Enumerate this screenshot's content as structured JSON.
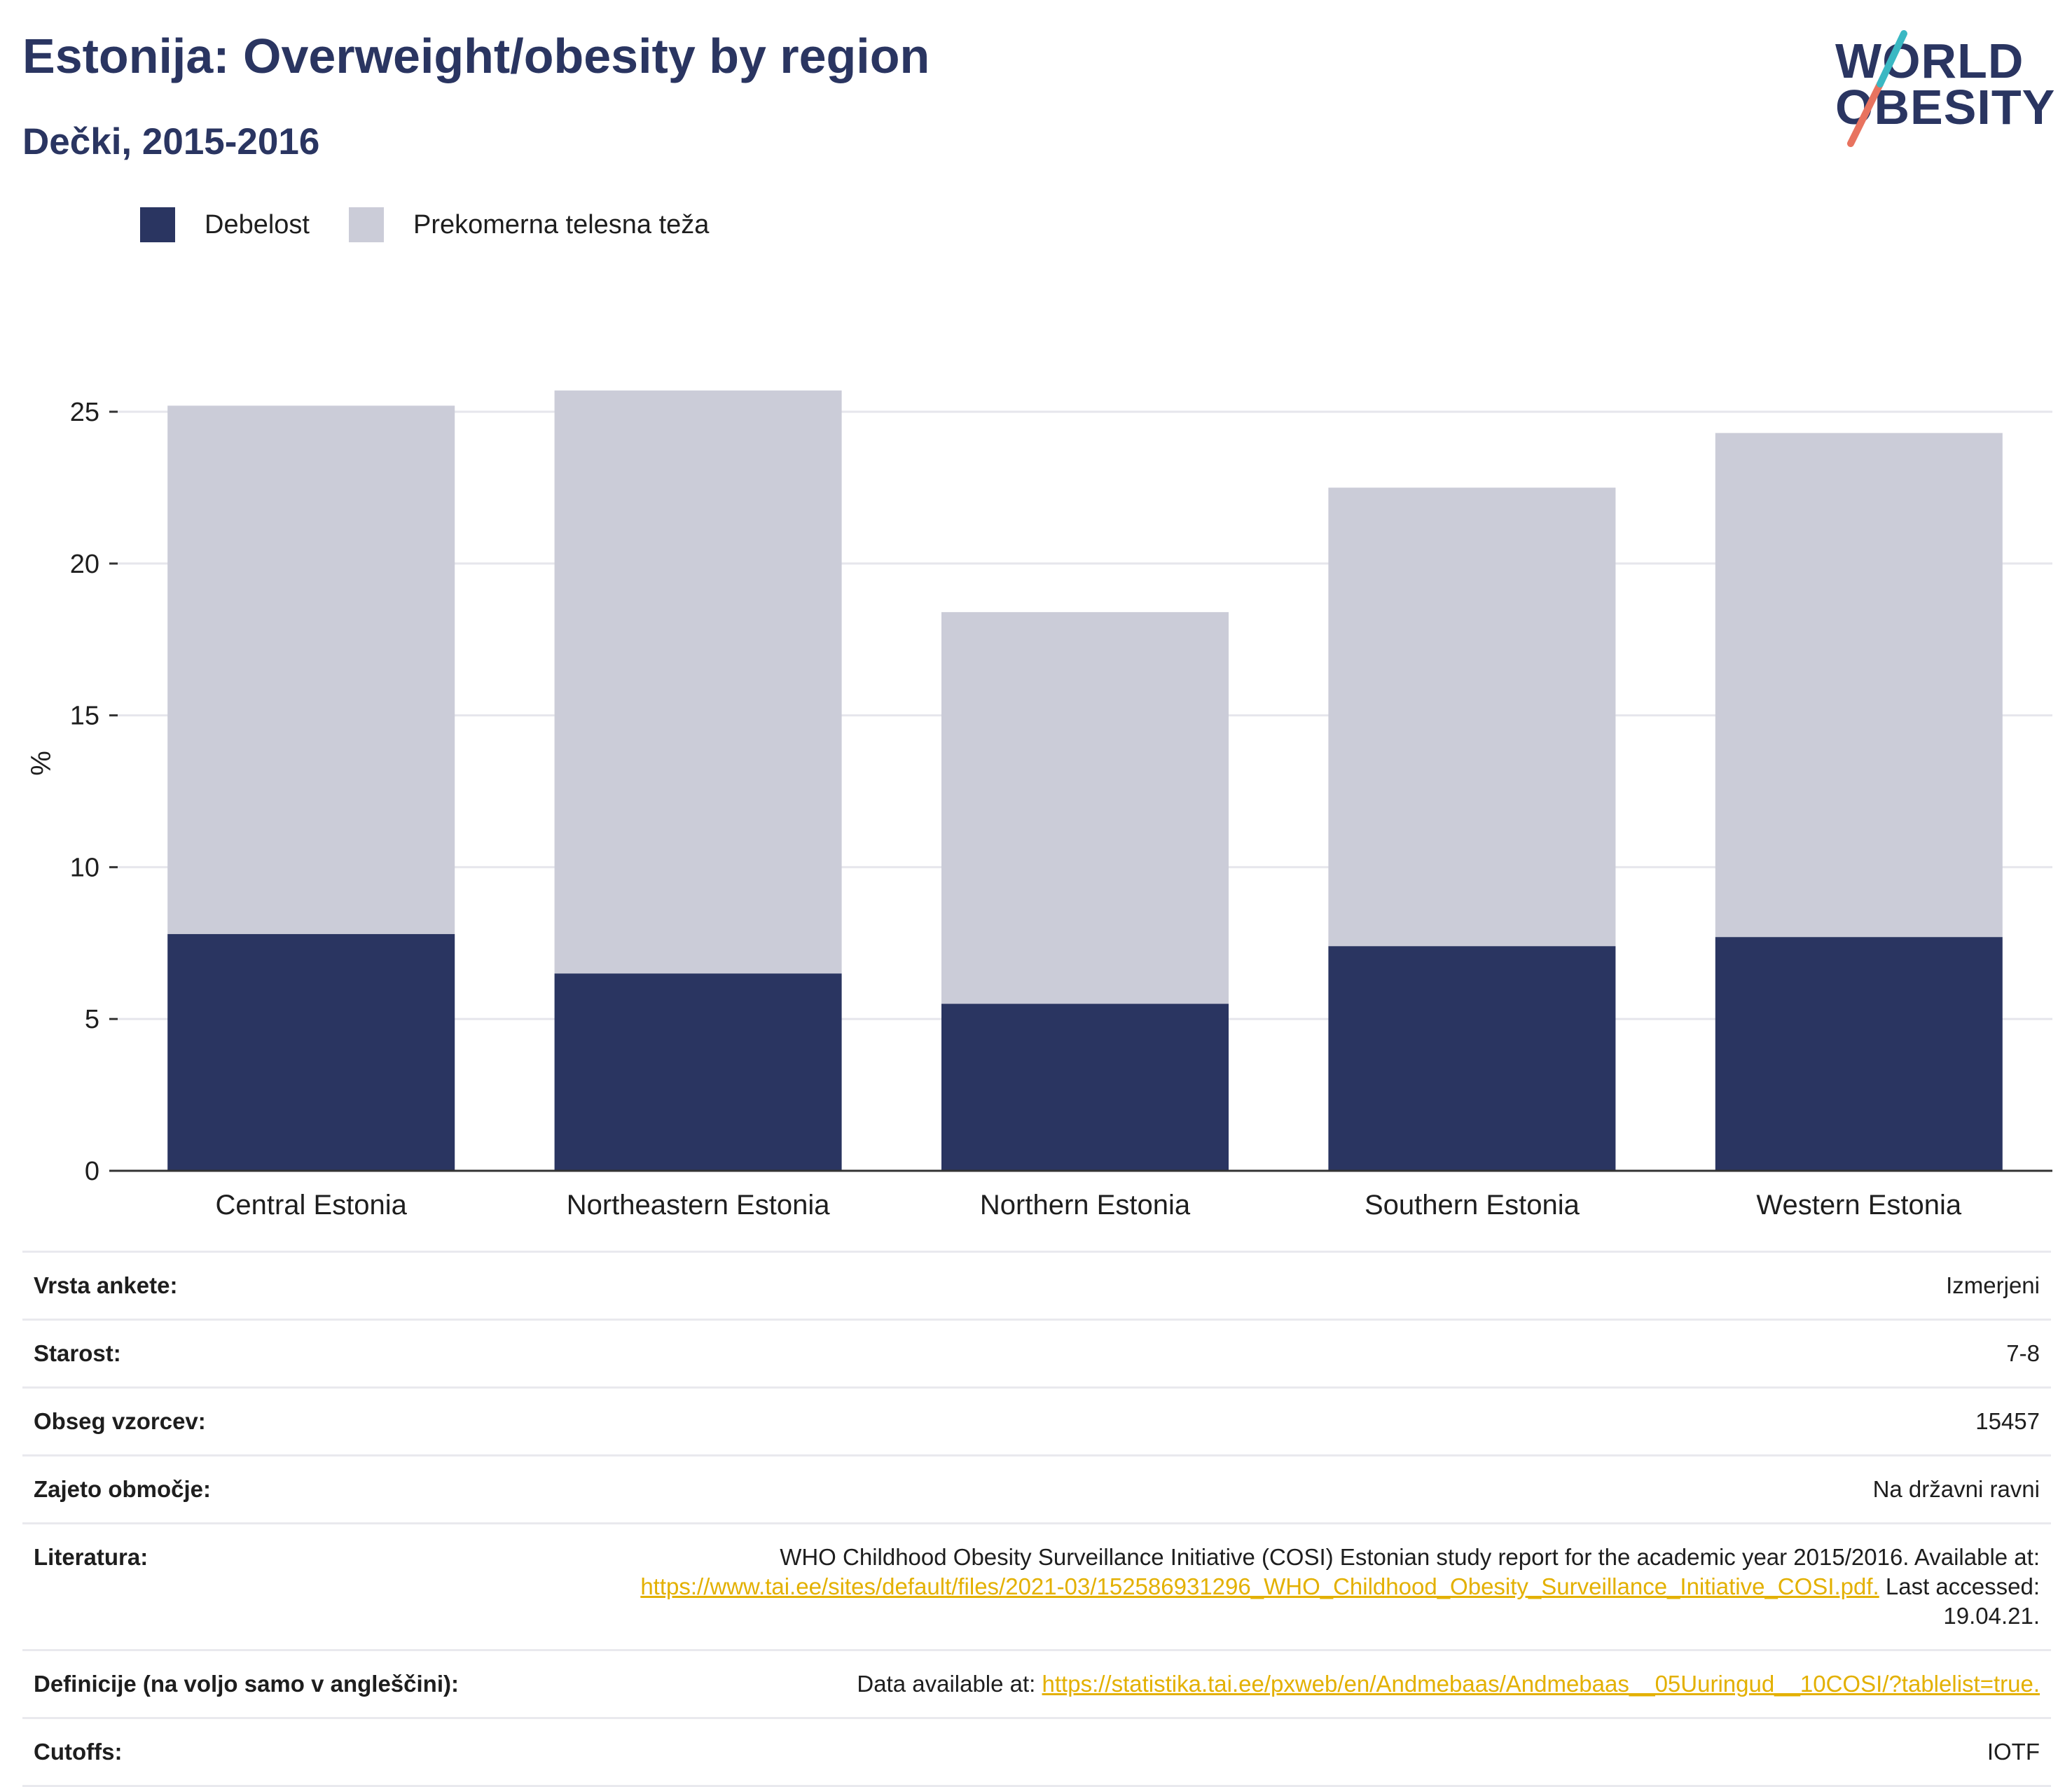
{
  "header": {
    "title": "Estonija: Overweight/obesity by region",
    "subtitle": "Dečki, 2015-2016"
  },
  "logo": {
    "line1": "WORLD",
    "line2": "OBESITY"
  },
  "colors": {
    "obesity": "#2a3561",
    "overweight": "#cbccd8",
    "link": "#e3b000",
    "grid": "#e6e6ec",
    "axis": "#333333"
  },
  "chart_data": {
    "type": "bar",
    "stacked": true,
    "categories": [
      "Central Estonia",
      "Northeastern Estonia",
      "Northern Estonia",
      "Southern Estonia",
      "Western Estonia"
    ],
    "series": [
      {
        "name": "Debelost",
        "values": [
          7.8,
          6.5,
          5.5,
          7.4,
          7.7
        ]
      },
      {
        "name": "Prekomerna telesna teža",
        "values": [
          17.4,
          19.2,
          12.9,
          15.1,
          16.6
        ]
      }
    ],
    "ylabel": "%",
    "ylim": [
      0,
      25
    ],
    "yticks": [
      0,
      5,
      10,
      15,
      20,
      25
    ],
    "grid": true,
    "legend_position": "top-left"
  },
  "info": {
    "survey_type": {
      "label": "Vrsta ankete:",
      "value": "Izmerjeni"
    },
    "age": {
      "label": "Starost:",
      "value": "7-8"
    },
    "sample_size": {
      "label": "Obseg vzorcev:",
      "value": "15457"
    },
    "area_covered": {
      "label": "Zajeto območje:",
      "value": "Na državni ravni"
    },
    "references": {
      "label": "Literatura:",
      "text_before": "WHO Childhood Obesity Surveillance Initiative (COSI) Estonian study report for the academic year 2015/2016. Available at:",
      "link": "https://www.tai.ee/sites/default/files/2021-03/152586931296_WHO_Childhood_Obesity_Surveillance_Initiative_COSI.pdf.",
      "text_after": "Last accessed: 19.04.21."
    },
    "definitions": {
      "label": "Definicije (na voljo samo v angleščini):",
      "text_before": "Data available at:",
      "link": "https://statistika.tai.ee/pxweb/en/Andmebaas/Andmebaas__05Uuringud__10COSI/?tablelist=true."
    },
    "cutoffs": {
      "label": "Cutoffs:",
      "value": "IOTF"
    }
  }
}
